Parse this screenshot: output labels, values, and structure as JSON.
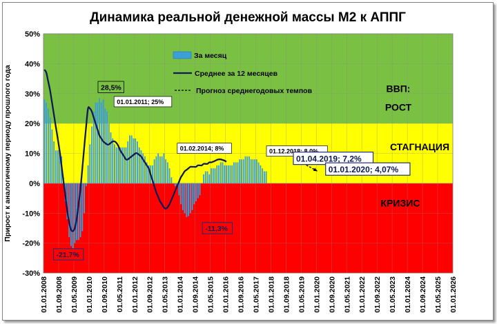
{
  "chart_data": {
    "type": "bar+line",
    "title": "Динамика реальной денежной массы М2 к АППГ",
    "ylabel": "Прирост к аналогичному периоду прошлого года",
    "ylim": [
      -30,
      50
    ],
    "yticks": [
      "-30%",
      "-20%",
      "-10%",
      "0%",
      "10%",
      "20%",
      "30%",
      "40%",
      "50%"
    ],
    "xticks": [
      "01.01.2008",
      "01.09.2008",
      "01.05.2009",
      "01.01.2010",
      "01.09.2010",
      "01.05.2011",
      "01.01.2012",
      "01.09.2012",
      "01.05.2013",
      "01.01.2014",
      "01.09.2014",
      "01.05.2015",
      "01.01.2016",
      "01.09.2016",
      "01.05.2017",
      "01.01.2018",
      "01.09.2018",
      "01.05.2019",
      "01.01.2020",
      "01.09.2020",
      "01.05.2021",
      "01.01.2022",
      "01.09.2022",
      "01.05.2023",
      "01.01.2024",
      "01.09.2024",
      "01.05.2025",
      "01.01.2026"
    ],
    "legend": {
      "placement": "top-left",
      "bars": "За месяц",
      "line": "Среднее за 12 месяцев",
      "forecast": "Прогноз среднегодовых темпов"
    },
    "zones": [
      {
        "label": "ВВП:",
        "label2": "РОСТ",
        "from": 20,
        "to": 50,
        "color": "#7ac143"
      },
      {
        "label": "СТАГНАЦИЯ",
        "from": 0,
        "to": 20,
        "color": "#ffff00"
      },
      {
        "label": "КРИЗИС",
        "from": -30,
        "to": 0,
        "color": "#ff0000"
      }
    ],
    "series": [
      {
        "kind": "bar",
        "start": "2008-01",
        "color": "#3b9fd9",
        "values": [
          28,
          27,
          25,
          22,
          18,
          14,
          11,
          11,
          11,
          9,
          2,
          -6,
          -12,
          -18,
          -21,
          -21.7,
          -20,
          -19,
          -19,
          -18,
          -16,
          -10,
          -1,
          6,
          13,
          19,
          24,
          27,
          27,
          28.5,
          27,
          28,
          25,
          24,
          20,
          17,
          15,
          13,
          12,
          12,
          12,
          12,
          12,
          12,
          14,
          16,
          16,
          15,
          15,
          14,
          12,
          11,
          10,
          9,
          7,
          6,
          6,
          6,
          8,
          9,
          10,
          9,
          9,
          10,
          8,
          7,
          5,
          2,
          0,
          -1,
          -1,
          -4,
          -7,
          -9,
          -10,
          -11.3,
          -11,
          -10,
          -9,
          -7,
          -6,
          -5,
          -4,
          0,
          3,
          4,
          4,
          3,
          5,
          5,
          5,
          6,
          6,
          7,
          7,
          6,
          6,
          6,
          6,
          6,
          7,
          7,
          7,
          8,
          8,
          8,
          9,
          9,
          9,
          8,
          8,
          8,
          8,
          7,
          6,
          5,
          4,
          4
        ]
      },
      {
        "kind": "line",
        "name": "Среднее за 12 месяцев",
        "start": "2008-01",
        "color": "#0d1a57",
        "values": [
          38,
          37,
          34,
          31,
          27,
          23,
          19,
          15,
          11,
          6,
          1,
          -4,
          -9,
          -13,
          -15.5,
          -16,
          -15,
          -12,
          -7,
          -2,
          5,
          12,
          19,
          25,
          25,
          24,
          22,
          20,
          18,
          16,
          15,
          14,
          13.5,
          13,
          13,
          13.5,
          14,
          14,
          13.5,
          12.5,
          11,
          10,
          9,
          8,
          8,
          8.5,
          9,
          9.5,
          10,
          10,
          9.5,
          9,
          8,
          7,
          6,
          5,
          3,
          1,
          -1,
          -3,
          -4.5,
          -6,
          -7,
          -8,
          -8.5,
          -8,
          -7,
          -5.5,
          -4,
          -2.5,
          -1,
          0.5,
          2,
          3,
          4,
          4.5,
          5,
          5.5,
          5.5,
          5.5,
          5.5,
          6,
          6,
          6,
          6.5,
          6.5,
          6.5,
          7,
          7,
          7.2,
          7.5,
          7.8,
          8,
          8,
          7.8,
          7.6,
          7.2
        ]
      },
      {
        "kind": "forecast",
        "name": "Прогноз среднегодовых темпов",
        "color": "#000000",
        "points": [
          [
            "2019-04",
            7.2
          ],
          [
            "2020-01",
            4.07
          ]
        ]
      }
    ],
    "annotations": [
      {
        "text": "28,5%",
        "style": "green",
        "at": [
          "2010-06",
          28.5
        ]
      },
      {
        "text": "01.01.2011; 25%",
        "style": "small",
        "at": [
          "2011-01",
          25
        ]
      },
      {
        "text": "01.02.2014; 8%",
        "style": "small",
        "at": [
          "2014-02",
          8
        ]
      },
      {
        "text": "01.12.2018; 8,0%",
        "style": "small",
        "at": [
          "2018-12",
          8
        ]
      },
      {
        "text": "01.04.2019; 7,2%",
        "style": "big",
        "at": [
          "2019-04",
          7.2
        ]
      },
      {
        "text": "01.01.2020; 4,07%",
        "style": "big",
        "at": [
          "2020-01",
          4.07
        ]
      },
      {
        "text": "-21,7%",
        "style": "red",
        "at": [
          "2009-04",
          -21.7
        ]
      },
      {
        "text": "-11,3%",
        "style": "red",
        "at": [
          "2015-04",
          -11.3
        ]
      }
    ]
  }
}
